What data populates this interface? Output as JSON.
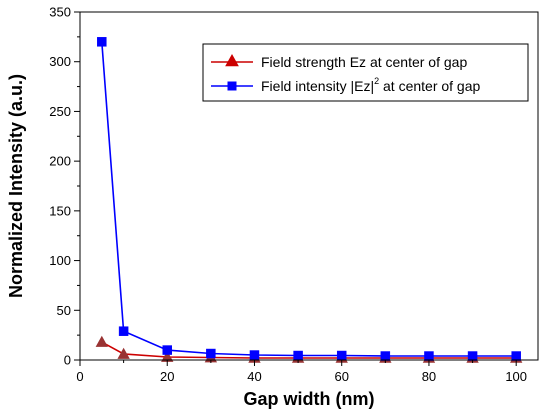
{
  "chart_data": {
    "type": "line",
    "title": "",
    "xlabel": "Gap width (nm)",
    "ylabel": "Normalized Intensity (a.u.)",
    "xlim": [
      0,
      105
    ],
    "ylim": [
      0,
      350
    ],
    "xticks": [
      0,
      20,
      40,
      60,
      80,
      100
    ],
    "yticks": [
      0,
      50,
      100,
      150,
      200,
      250,
      300,
      350
    ],
    "grid": false,
    "legend_position": "top-right",
    "x": [
      5,
      10,
      20,
      30,
      40,
      50,
      60,
      70,
      80,
      90,
      100
    ],
    "series": [
      {
        "name": "Field strength Ez at center of gap",
        "color": "#cc0000",
        "marker": "triangle",
        "marker_fill": "#993333",
        "values": [
          18,
          6,
          3,
          2.5,
          2,
          2,
          2,
          2,
          2,
          2,
          2
        ]
      },
      {
        "name": "Field intensity |Ez|",
        "name_superscript": "2",
        "name_suffix": " at center of gap",
        "color": "#0000ff",
        "marker": "square",
        "marker_fill": "#0000ff",
        "values": [
          320,
          29,
          10,
          6.5,
          5,
          4.5,
          4.5,
          4,
          4,
          4,
          4
        ]
      }
    ]
  }
}
